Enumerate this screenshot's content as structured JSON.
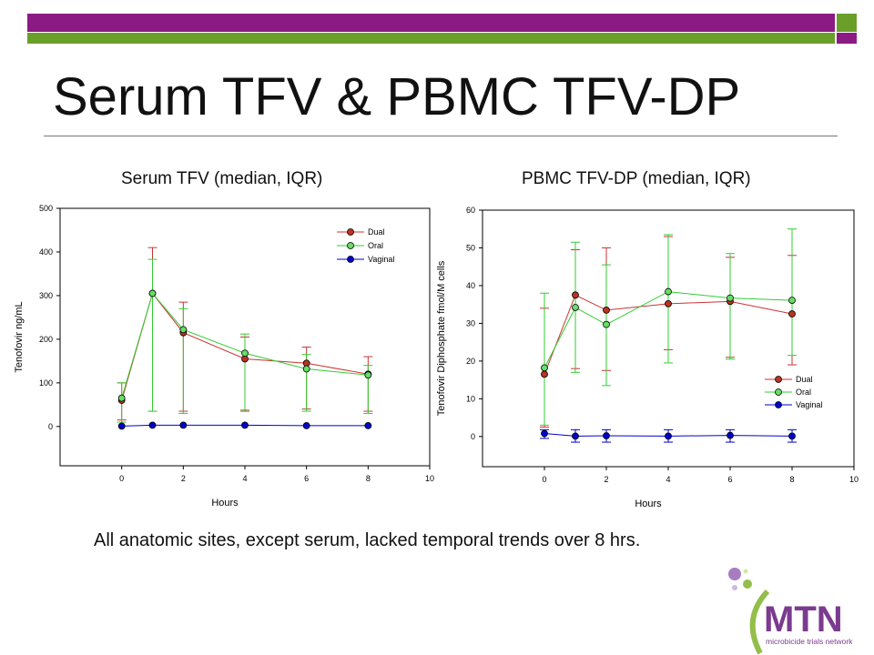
{
  "title": "Serum TFV & PBMC TFV-DP",
  "footnote": "All anatomic sites, except serum, lacked temporal trends over 8 hrs.",
  "colors": {
    "purple": "#8b1a85",
    "green": "#6a9f2a",
    "dual": "#cc3333",
    "oral": "#33cc33",
    "vaginal": "#0000cc"
  },
  "logo": {
    "name": "MTN",
    "tagline": "microbicide trials network"
  },
  "chart_data": [
    {
      "type": "line",
      "title": "Serum TFV (median, IQR)",
      "xlabel": "Hours",
      "ylabel": "Tenofovir ng/mL",
      "xlim": [
        -2,
        10
      ],
      "ylim": [
        -90,
        500
      ],
      "xticks": [
        0,
        2,
        4,
        6,
        8,
        10
      ],
      "yticks": [
        0,
        100,
        200,
        300,
        400,
        500
      ],
      "legend_position": "top-right",
      "series": [
        {
          "name": "Dual",
          "color": "#cc3333",
          "x": [
            0,
            1,
            2,
            4,
            6,
            8
          ],
          "y": [
            60,
            305,
            215,
            155,
            145,
            120
          ],
          "err_low": [
            15,
            35,
            35,
            35,
            40,
            35
          ],
          "err_high": [
            100,
            410,
            285,
            205,
            182,
            160
          ]
        },
        {
          "name": "Oral",
          "color": "#33cc33",
          "x": [
            0,
            1,
            2,
            4,
            6,
            8
          ],
          "y": [
            65,
            305,
            222,
            168,
            132,
            118
          ],
          "err_low": [
            10,
            35,
            30,
            38,
            35,
            30
          ],
          "err_high": [
            100,
            383,
            270,
            212,
            165,
            140
          ]
        },
        {
          "name": "Vaginal",
          "color": "#0000cc",
          "x": [
            0,
            1,
            2,
            4,
            6,
            8
          ],
          "y": [
            1,
            3,
            3,
            3,
            2,
            2
          ]
        }
      ]
    },
    {
      "type": "line",
      "title": "PBMC TFV-DP (median, IQR)",
      "xlabel": "Hours",
      "ylabel": "Tenofovir Diphosphate fmol/M cells",
      "xlim": [
        -2,
        10
      ],
      "ylim": [
        -8,
        60
      ],
      "xticks": [
        0,
        2,
        4,
        6,
        8,
        10
      ],
      "yticks": [
        0,
        10,
        20,
        30,
        40,
        50,
        60
      ],
      "legend_position": "bottom-right",
      "series": [
        {
          "name": "Dual",
          "color": "#cc3333",
          "x": [
            0,
            1,
            2,
            4,
            6,
            8
          ],
          "y": [
            16.5,
            37.5,
            33.5,
            35.2,
            35.8,
            32.5
          ],
          "err_low": [
            2.5,
            18,
            17.5,
            23,
            21,
            19
          ],
          "err_high": [
            34,
            49.5,
            50,
            53,
            47.5,
            48
          ]
        },
        {
          "name": "Oral",
          "color": "#33cc33",
          "x": [
            0,
            1,
            2,
            4,
            6,
            8
          ],
          "y": [
            18.2,
            34.2,
            29.7,
            38.4,
            36.7,
            36.1
          ],
          "err_low": [
            3,
            17,
            13.5,
            19.5,
            20.5,
            21.5
          ],
          "err_high": [
            38,
            51.5,
            45.5,
            53.5,
            48.5,
            55
          ]
        },
        {
          "name": "Vaginal",
          "color": "#0000cc",
          "x": [
            0,
            1,
            2,
            4,
            6,
            8
          ],
          "y": [
            0.8,
            0.1,
            0.2,
            0.1,
            0.3,
            0.1
          ],
          "err_low": [
            -0.5,
            -1.5,
            -1.5,
            -1.5,
            -1.5,
            -1.5
          ],
          "err_high": [
            1.8,
            1.8,
            1.8,
            1.8,
            1.8,
            1.8
          ]
        }
      ]
    }
  ]
}
